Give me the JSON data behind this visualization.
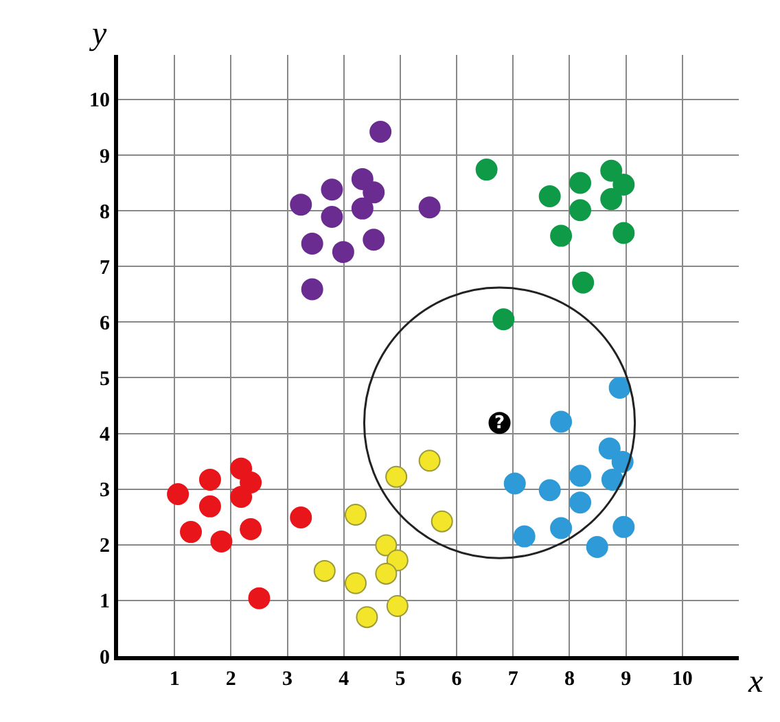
{
  "chart_data": {
    "type": "scatter",
    "xlabel": "x",
    "ylabel": "y",
    "xlim": [
      0,
      11
    ],
    "ylim": [
      0,
      10.8
    ],
    "xticks": [
      1,
      2,
      3,
      4,
      5,
      6,
      7,
      8,
      9,
      10
    ],
    "yticks": [
      0,
      1,
      2,
      3,
      4,
      5,
      6,
      7,
      8,
      9,
      10
    ],
    "grid": true,
    "marker": "circle",
    "annotations": [
      {
        "text": "?",
        "x": 6.76,
        "y": 4.19
      }
    ],
    "series": [
      {
        "color": "#6b2c91",
        "x": [
          4.65,
          3.24,
          3.79,
          4.33,
          4.53,
          4.33,
          5.52,
          3.79,
          3.44,
          3.99,
          4.53,
          3.44
        ],
        "values": [
          9.42,
          8.11,
          8.38,
          8.57,
          8.33,
          8.04,
          8.06,
          7.89,
          7.41,
          7.26,
          7.48,
          6.59
        ]
      },
      {
        "color": "#0f9a48",
        "x": [
          6.53,
          7.65,
          8.19,
          8.74,
          8.96,
          8.74,
          8.19,
          7.85,
          8.96,
          8.24,
          6.83
        ],
        "values": [
          8.74,
          8.26,
          8.5,
          8.72,
          8.47,
          8.21,
          8.01,
          7.55,
          7.6,
          6.71,
          6.05
        ]
      },
      {
        "color": "#2e9ad8",
        "x": [
          8.89,
          7.85,
          8.71,
          8.94,
          8.76,
          8.19,
          7.03,
          7.65,
          8.19,
          8.96,
          7.2,
          7.85,
          8.49
        ],
        "values": [
          4.82,
          4.21,
          3.73,
          3.49,
          3.17,
          3.24,
          3.1,
          2.98,
          2.76,
          2.32,
          2.15,
          2.3,
          1.96
        ]
      },
      {
        "color": "#f2e52a",
        "x": [
          5.52,
          4.93,
          5.74,
          4.21,
          4.75,
          4.95,
          4.75,
          3.66,
          4.21,
          4.95,
          4.41
        ],
        "values": [
          3.51,
          3.22,
          2.42,
          2.54,
          1.99,
          1.72,
          1.48,
          1.53,
          1.31,
          0.9,
          0.7
        ]
      },
      {
        "color": "#e8151b",
        "x": [
          1.06,
          1.63,
          2.18,
          2.35,
          2.18,
          1.63,
          1.29,
          1.83,
          2.35,
          3.24,
          2.5
        ],
        "values": [
          2.91,
          3.17,
          3.37,
          3.12,
          2.86,
          2.69,
          2.23,
          2.06,
          2.28,
          2.49,
          1.04
        ]
      },
      {
        "color": "#000000",
        "x": [
          6.76
        ],
        "values": [
          4.19
        ]
      }
    ]
  }
}
